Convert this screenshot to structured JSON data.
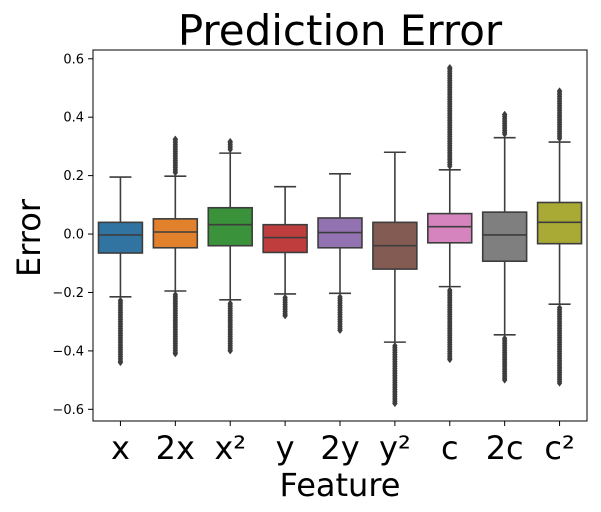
{
  "chart_data": {
    "type": "box",
    "title": "Prediction Error",
    "xlabel": "Feature",
    "ylabel": "Error",
    "ylim": [
      -0.64,
      0.63
    ],
    "yticks": [
      -0.6,
      -0.4,
      -0.2,
      0.0,
      0.2,
      0.4,
      0.6
    ],
    "ytick_labels": [
      "−0.6",
      "−0.4",
      "−0.2",
      "0.0",
      "0.2",
      "0.4",
      "0.6"
    ],
    "grid": false,
    "categories": [
      "x",
      "2x",
      "x²",
      "y",
      "2y",
      "y²",
      "c",
      "2c",
      "c²"
    ],
    "colors": [
      "#3274a1",
      "#e1812c",
      "#3a923a",
      "#c03d3e",
      "#9372b2",
      "#845b53",
      "#d684bd",
      "#7f7f7f",
      "#a9aa35"
    ],
    "boxes": [
      {
        "category": "x",
        "q1": -0.065,
        "median": -0.003,
        "q3": 0.04,
        "whisker_low": -0.215,
        "whisker_high": 0.195,
        "outlier_low": -0.44,
        "outlier_high": null
      },
      {
        "category": "2x",
        "q1": -0.047,
        "median": 0.007,
        "q3": 0.052,
        "whisker_low": -0.195,
        "whisker_high": 0.198,
        "outlier_low": -0.41,
        "outlier_high": 0.325
      },
      {
        "category": "x²",
        "q1": -0.04,
        "median": 0.032,
        "q3": 0.09,
        "whisker_low": -0.225,
        "whisker_high": 0.277,
        "outlier_low": -0.4,
        "outlier_high": 0.317
      },
      {
        "category": "y",
        "q1": -0.063,
        "median": -0.012,
        "q3": 0.032,
        "whisker_low": -0.205,
        "whisker_high": 0.162,
        "outlier_low": -0.28,
        "outlier_high": null
      },
      {
        "category": "2y",
        "q1": -0.047,
        "median": 0.005,
        "q3": 0.055,
        "whisker_low": -0.203,
        "whisker_high": 0.206,
        "outlier_low": -0.33,
        "outlier_high": null
      },
      {
        "category": "y²",
        "q1": -0.12,
        "median": -0.04,
        "q3": 0.04,
        "whisker_low": -0.37,
        "whisker_high": 0.28,
        "outlier_low": -0.58,
        "outlier_high": null
      },
      {
        "category": "c",
        "q1": -0.03,
        "median": 0.025,
        "q3": 0.07,
        "whisker_low": -0.18,
        "whisker_high": 0.22,
        "outlier_low": -0.43,
        "outlier_high": 0.57
      },
      {
        "category": "2c",
        "q1": -0.093,
        "median": -0.003,
        "q3": 0.075,
        "whisker_low": -0.345,
        "whisker_high": 0.33,
        "outlier_low": -0.5,
        "outlier_high": 0.41
      },
      {
        "category": "c²",
        "q1": -0.033,
        "median": 0.04,
        "q3": 0.108,
        "whisker_low": -0.24,
        "whisker_high": 0.315,
        "outlier_low": -0.51,
        "outlier_high": 0.49
      }
    ]
  }
}
